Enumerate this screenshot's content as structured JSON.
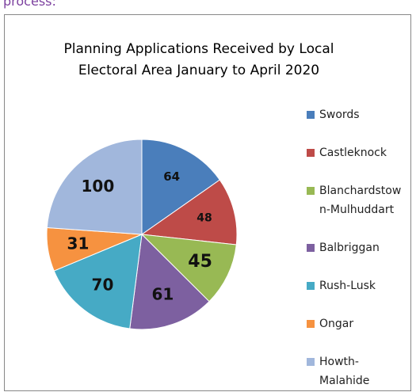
{
  "header": {
    "text": "process:"
  },
  "chart_data": {
    "type": "pie",
    "title": "Planning Applications Received by Local Electoral Area January to April 2020",
    "categories": [
      "Swords",
      "Castleknock",
      "Blanchardstown-Mulhuddart",
      "Balbriggan",
      "Rush-Lusk",
      "Ongar",
      "Howth-Malahide"
    ],
    "values": [
      64,
      48,
      45,
      61,
      70,
      31,
      100
    ],
    "colors": [
      "#4a7ebb",
      "#be4b48",
      "#98b954",
      "#7d60a0",
      "#46aac5",
      "#f69240",
      "#a1b7dc"
    ],
    "legend": "right"
  }
}
